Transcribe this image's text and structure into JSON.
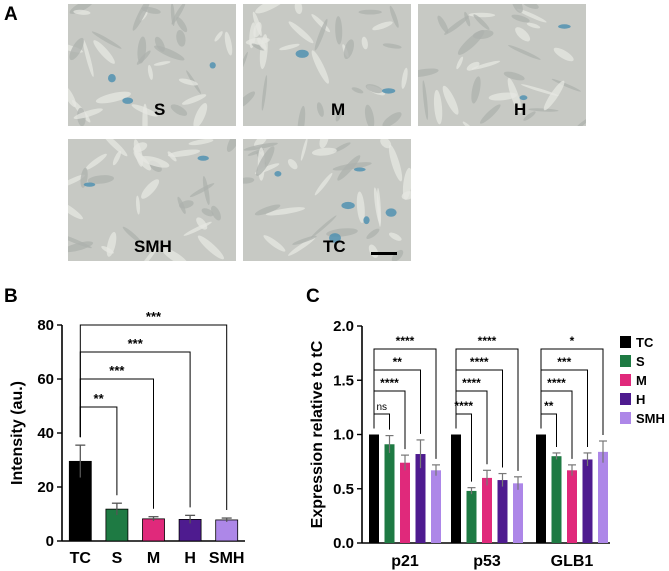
{
  "panel_a": {
    "letter": "A",
    "images": [
      {
        "label": "S"
      },
      {
        "label": "M"
      },
      {
        "label": "H"
      },
      {
        "label": "SMH"
      },
      {
        "label": "TC"
      }
    ],
    "stain_color": "#4a8fb0",
    "background_color": "#c7c9c4"
  },
  "panel_b": {
    "letter": "B"
  },
  "panel_c": {
    "letter": "C"
  },
  "chart_data": [
    {
      "type": "bar",
      "panel": "B",
      "title": "",
      "xlabel": "",
      "ylabel": "Intensity (au.)",
      "ylim": [
        0,
        80
      ],
      "yticks": [
        0,
        20,
        40,
        60,
        80
      ],
      "categories": [
        "TC",
        "S",
        "M",
        "H",
        "SMH"
      ],
      "values": [
        29.5,
        11.8,
        8.2,
        8.0,
        7.8
      ],
      "errors": [
        6.0,
        2.2,
        0.8,
        1.5,
        0.7
      ],
      "colors": [
        "#000000",
        "#1e7a43",
        "#e0297b",
        "#4e1b8f",
        "#ad87e8"
      ],
      "significance": [
        {
          "from": "TC",
          "to": "S",
          "label": "**"
        },
        {
          "from": "TC",
          "to": "M",
          "label": "***"
        },
        {
          "from": "TC",
          "to": "H",
          "label": "***"
        },
        {
          "from": "TC",
          "to": "SMH",
          "label": "***"
        }
      ]
    },
    {
      "type": "bar",
      "panel": "C",
      "title": "",
      "xlabel": "",
      "ylabel": "Expression relative to tC",
      "ylim": [
        0,
        2.0
      ],
      "yticks": [
        "0.0",
        "0.5",
        "1.0",
        "1.5",
        "2.0"
      ],
      "categories": [
        "p21",
        "p53",
        "GLB1"
      ],
      "series": [
        {
          "name": "TC",
          "color": "#000000",
          "values": [
            1.0,
            1.0,
            1.0
          ],
          "errors": [
            0,
            0,
            0
          ]
        },
        {
          "name": "S",
          "color": "#1e7a43",
          "values": [
            0.91,
            0.48,
            0.8
          ],
          "errors": [
            0.08,
            0.03,
            0.03
          ]
        },
        {
          "name": "M",
          "color": "#e0297b",
          "values": [
            0.74,
            0.6,
            0.67
          ],
          "errors": [
            0.07,
            0.07,
            0.05
          ]
        },
        {
          "name": "H",
          "color": "#4e1b8f",
          "values": [
            0.82,
            0.58,
            0.77
          ],
          "errors": [
            0.13,
            0.06,
            0.06
          ]
        },
        {
          "name": "SMH",
          "color": "#ad87e8",
          "values": [
            0.67,
            0.55,
            0.84
          ],
          "errors": [
            0.05,
            0.06,
            0.1
          ]
        }
      ],
      "significance": [
        {
          "group": "p21",
          "to": "S",
          "label": "ns"
        },
        {
          "group": "p21",
          "to": "M",
          "label": "****"
        },
        {
          "group": "p21",
          "to": "H",
          "label": "**"
        },
        {
          "group": "p21",
          "to": "SMH",
          "label": "****"
        },
        {
          "group": "p53",
          "to": "S",
          "label": "****"
        },
        {
          "group": "p53",
          "to": "M",
          "label": "****"
        },
        {
          "group": "p53",
          "to": "H",
          "label": "****"
        },
        {
          "group": "p53",
          "to": "SMH",
          "label": "****"
        },
        {
          "group": "GLB1",
          "to": "S",
          "label": "**"
        },
        {
          "group": "GLB1",
          "to": "M",
          "label": "****"
        },
        {
          "group": "GLB1",
          "to": "H",
          "label": "***"
        },
        {
          "group": "GLB1",
          "to": "SMH",
          "label": "*"
        }
      ],
      "legend": {
        "position": "right",
        "entries": [
          "TC",
          "S",
          "M",
          "H",
          "SMH"
        ]
      }
    }
  ]
}
